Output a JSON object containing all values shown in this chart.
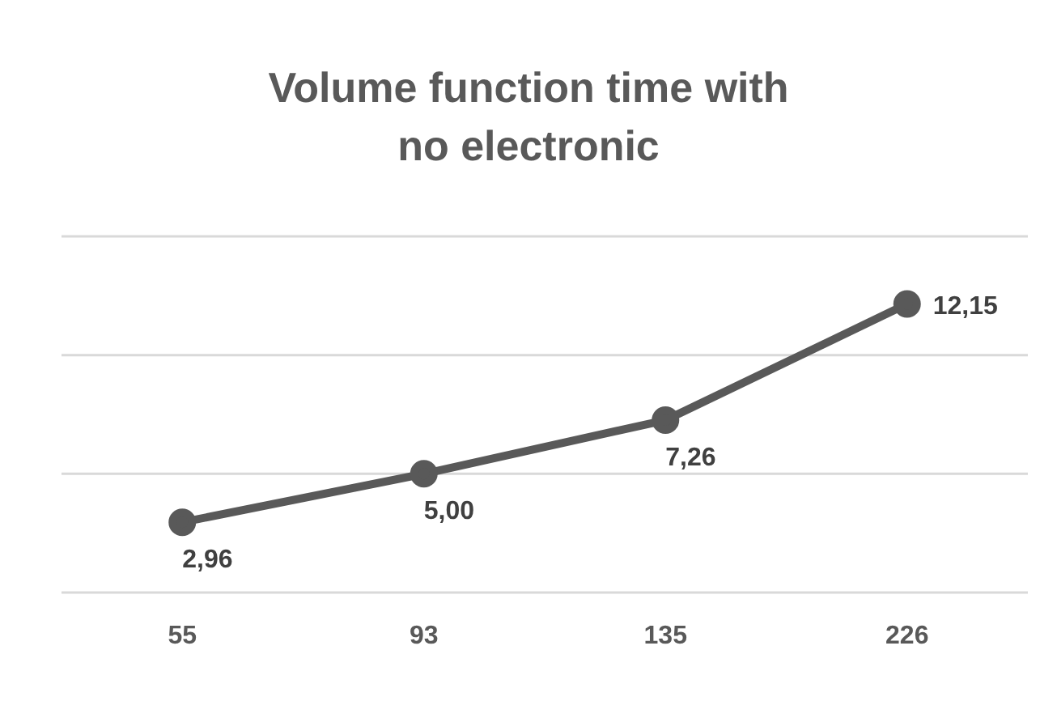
{
  "chart_data": {
    "type": "line",
    "title": "Volume function time with no electronic",
    "categories": [
      "55",
      "93",
      "135",
      "226"
    ],
    "series": [
      {
        "color": "#595959",
        "values": [
          2.96,
          5.0,
          7.26,
          12.15
        ],
        "value_labels": [
          "2,96",
          "5,00",
          "7,26",
          "12,15"
        ]
      }
    ],
    "ylim": [
      0,
      15
    ],
    "yticks": [
      {
        "value": 0,
        "label": null
      },
      {
        "value": 5,
        "label": null
      },
      {
        "value": 10,
        "label": null
      },
      {
        "value": 15,
        "label": null
      }
    ],
    "tick_labels": "x",
    "grid": "y",
    "marker": "circle",
    "line_style": "solid"
  }
}
